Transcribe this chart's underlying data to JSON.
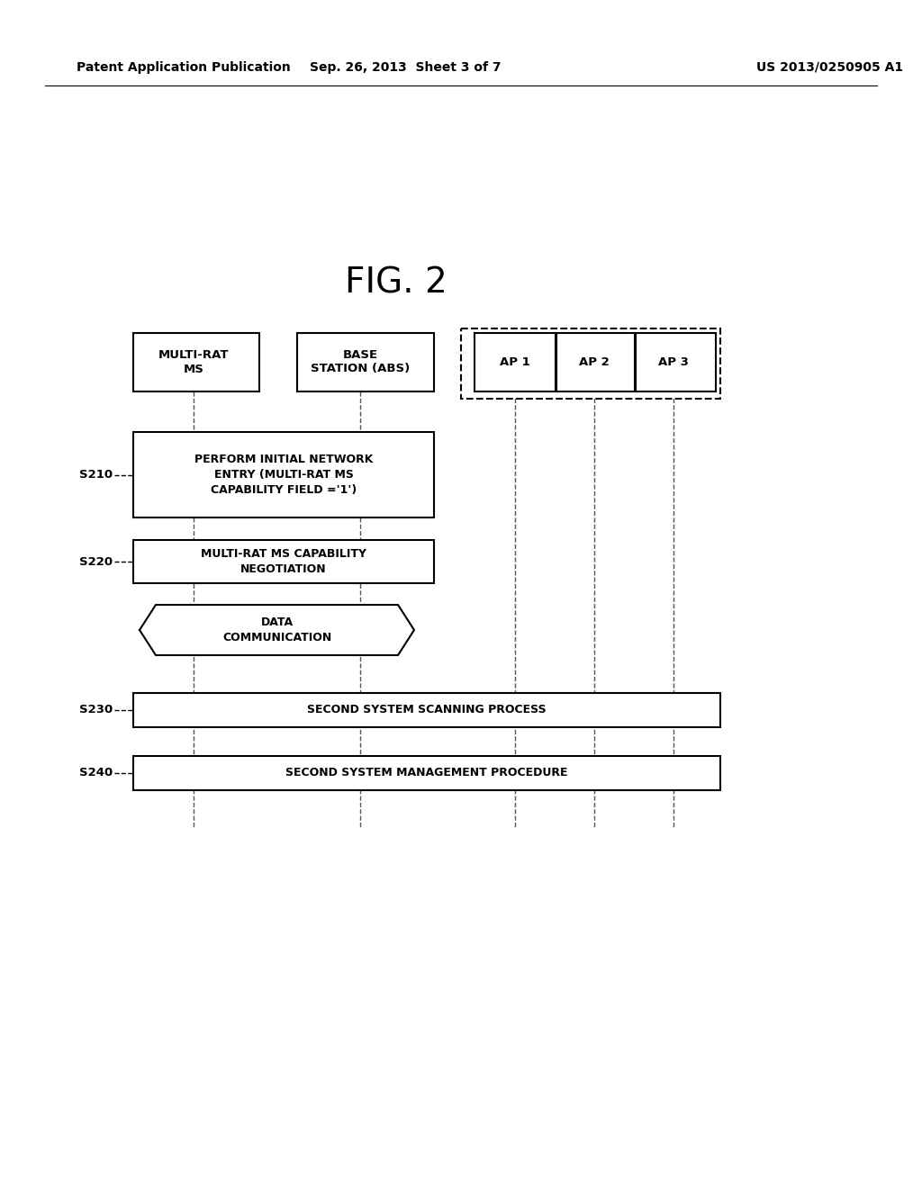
{
  "header_left": "Patent Application Publication",
  "header_mid": "Sep. 26, 2013  Sheet 3 of 7",
  "header_right": "US 2013/0250905 A1",
  "fig_title": "FIG. 2",
  "box_ms_label": "MULTI-RAT\nMS",
  "box_abs_label": "BASE\nSTATION (ABS)",
  "box_ap1_label": "AP 1",
  "box_ap2_label": "AP 2",
  "box_ap3_label": "AP 3",
  "step_texts": [
    "PERFORM INITIAL NETWORK\nENTRY (MULTI-RAT MS\nCAPABILITY FIELD ='1')",
    "MULTI-RAT MS CAPABILITY\nNEGOTIATION",
    "SECOND SYSTEM SCANNING PROCESS",
    "SECOND SYSTEM MANAGEMENT PROCEDURE"
  ],
  "step_labels": [
    "S210",
    "S220",
    "S230",
    "S240"
  ],
  "data_comm_label": "DATA\nCOMMUNICATION",
  "background_color": "#ffffff"
}
